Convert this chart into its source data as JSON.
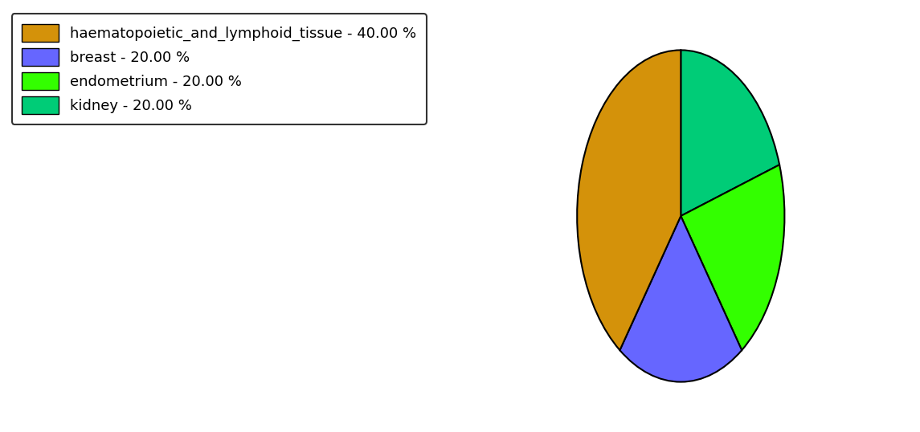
{
  "labels": [
    "haematopoietic_and_lymphoid_tissue",
    "breast",
    "endometrium",
    "kidney"
  ],
  "sizes": [
    40.0,
    20.0,
    20.0,
    20.0
  ],
  "colors": [
    "#D4920A",
    "#6666FF",
    "#33FF00",
    "#00CC77"
  ],
  "legend_labels": [
    "haematopoietic_and_lymphoid_tissue - 40.00 %",
    "breast - 20.00 %",
    "endometrium - 20.00 %",
    "kidney - 20.00 %"
  ],
  "startangle": 90,
  "background_color": "#ffffff",
  "figsize": [
    11.45,
    5.38
  ],
  "dpi": 100,
  "pie_order_colors": [
    "#00CC77",
    "#33FF00",
    "#6666FF",
    "#D4920A"
  ],
  "pie_order_sizes": [
    20.0,
    20.0,
    20.0,
    40.0
  ]
}
